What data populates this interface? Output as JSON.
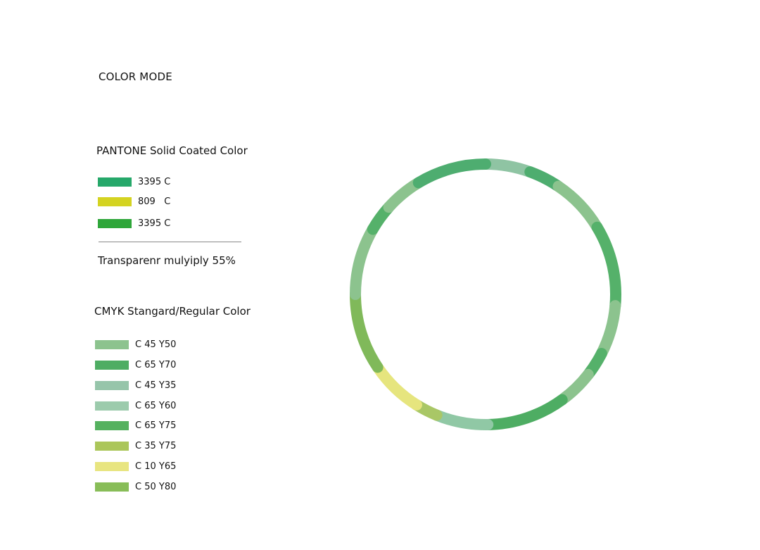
{
  "title": "COLOR MODE",
  "pantone": {
    "heading": "PANTONE Solid Coated Color",
    "items": [
      {
        "label": "3395 C",
        "color": "#26a86a"
      },
      {
        "label": "809   C",
        "color": "#d4d321"
      },
      {
        "label": "3395 C",
        "color": "#2fa63a"
      }
    ]
  },
  "transparency_note": "Transparenr mulyiply 55%",
  "cmyk": {
    "heading": "CMYK Stangard/Regular Color",
    "items": [
      {
        "label": "C 45 Y50",
        "color": "#8cc38e"
      },
      {
        "label": "C 65 Y70",
        "color": "#4ead63"
      },
      {
        "label": "C 45 Y35",
        "color": "#96c5aa"
      },
      {
        "label": "C 65 Y60",
        "color": "#9ccbac"
      },
      {
        "label": "C 65 Y75",
        "color": "#55b15f"
      },
      {
        "label": "C 35 Y75",
        "color": "#abc65a"
      },
      {
        "label": "C 10 Y65",
        "color": "#e8e580"
      },
      {
        "label": "C 50 Y80",
        "color": "#88bd58"
      }
    ]
  },
  "ring": {
    "segments": [
      {
        "start": -90,
        "end": -70,
        "color": "#8fc4a3"
      },
      {
        "start": -70,
        "end": -56,
        "color": "#4ead6f"
      },
      {
        "start": -56,
        "end": -31,
        "color": "#8cc38e"
      },
      {
        "start": -31,
        "end": 5,
        "color": "#55b16a"
      },
      {
        "start": 5,
        "end": 27,
        "color": "#8cc38e"
      },
      {
        "start": 27,
        "end": 38,
        "color": "#55b16a"
      },
      {
        "start": 38,
        "end": 54,
        "color": "#8cc38e"
      },
      {
        "start": 54,
        "end": 89,
        "color": "#4ead63"
      },
      {
        "start": 89,
        "end": 112,
        "color": "#90c8a5"
      },
      {
        "start": 112,
        "end": 122,
        "color": "#a9c766"
      },
      {
        "start": 122,
        "end": 146,
        "color": "#e6e57e"
      },
      {
        "start": 146,
        "end": 180,
        "color": "#80b95a"
      },
      {
        "start": 180,
        "end": 210,
        "color": "#8cc38e"
      },
      {
        "start": 210,
        "end": 222,
        "color": "#55b16a"
      },
      {
        "start": 222,
        "end": 239,
        "color": "#8cc38e"
      },
      {
        "start": 239,
        "end": 270,
        "color": "#4ead70"
      }
    ]
  }
}
